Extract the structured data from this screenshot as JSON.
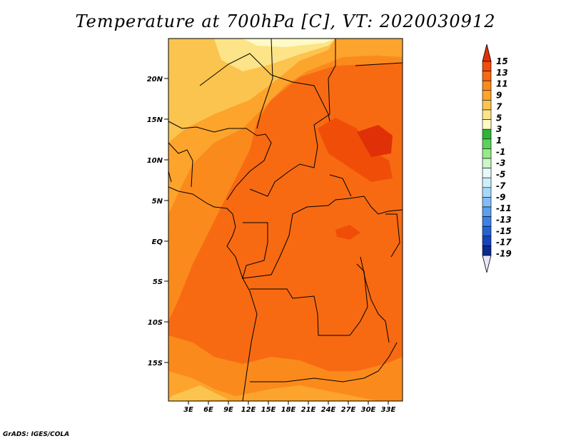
{
  "title": "Temperature at 700hPa [C], VT: 2020030912",
  "footer": "GrADS: IGES/COLA",
  "map": {
    "lat_labels": [
      "20N",
      "15N",
      "10N",
      "5N",
      "EQ",
      "5S",
      "10S",
      "15S"
    ],
    "lon_labels": [
      "3E",
      "6E",
      "9E",
      "12E",
      "15E",
      "18E",
      "21E",
      "24E",
      "27E",
      "30E",
      "33E"
    ],
    "lat_range": [
      -19.5,
      24.5
    ],
    "lon_range": [
      0.0,
      34.5
    ]
  },
  "colorbar": {
    "labels": [
      "15",
      "13",
      "11",
      "9",
      "7",
      "5",
      "3",
      "1",
      "-1",
      "-3",
      "-5",
      "-7",
      "-9",
      "-11",
      "-13",
      "-15",
      "-17",
      "-19"
    ],
    "colors": [
      "#e03008",
      "#f04e08",
      "#f76a12",
      "#fb8a1c",
      "#fca42c",
      "#fbc44e",
      "#fde488",
      "#fefac6",
      "#30b436",
      "#5ad25a",
      "#96ea88",
      "#caf6c8",
      "#e6f9f8",
      "#cdeefb",
      "#a7d8fa",
      "#80bdf8",
      "#5a9ff0",
      "#3c82e6",
      "#2464d2",
      "#1446b8",
      "#0a2a8c",
      "#e6e6f8"
    ]
  }
}
